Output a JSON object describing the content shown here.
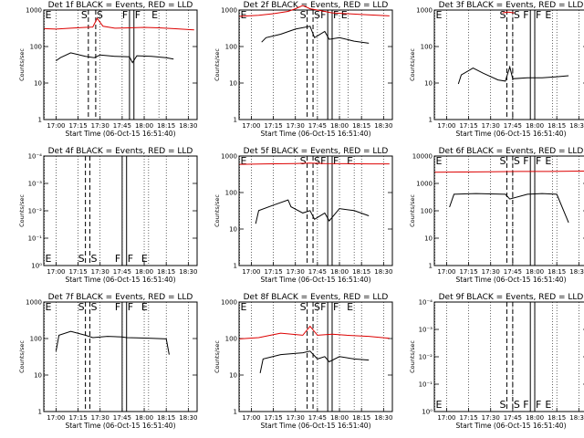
{
  "chart_data": [
    {
      "type": "line",
      "title": "Det 1f BLACK = Events, RED = LLD",
      "xlabel": "Start Time (06-Oct-15 16:51:40)",
      "ylabel": "Counts/sec",
      "yscale": "log",
      "ylim": [
        1,
        1200
      ],
      "xlim": [
        "16:51:40",
        "18:36:00"
      ],
      "x_ticks": [
        "17:00",
        "17:15",
        "17:30",
        "17:45",
        "18:00",
        "18:15",
        "18:30"
      ],
      "y_ticks": [
        "1",
        "10",
        "100",
        "1000"
      ],
      "markers": [
        {
          "label": "E",
          "time": "16:52",
          "style": "dotted"
        },
        {
          "label": "S",
          "time": "17:22",
          "style": "dashed"
        },
        {
          "label": "S",
          "time": "17:27",
          "style": "dashed"
        },
        {
          "label": "F",
          "time": "17:50",
          "style": "solid"
        },
        {
          "label": "F",
          "time": "17:53",
          "style": "solid"
        },
        {
          "label": "E",
          "time": "18:10",
          "style": "dotted"
        }
      ],
      "series": [
        {
          "color": "#dd0000",
          "x": [
            "16:52",
            "17:00",
            "17:10",
            "17:20",
            "17:25",
            "17:28",
            "17:32",
            "17:40",
            "17:50",
            "18:00",
            "18:10",
            "18:20",
            "18:34"
          ],
          "y": [
            360,
            350,
            370,
            390,
            400,
            700,
            420,
            370,
            380,
            390,
            380,
            360,
            330
          ]
        },
        {
          "color": "#000000",
          "x": [
            "17:00",
            "17:03",
            "17:10",
            "17:20",
            "17:26",
            "17:30",
            "17:40",
            "17:50",
            "17:52",
            "17:55",
            "18:05",
            "18:15",
            "18:20"
          ],
          "y": [
            45,
            55,
            75,
            60,
            55,
            65,
            60,
            58,
            40,
            62,
            60,
            55,
            50
          ]
        }
      ]
    },
    {
      "type": "line",
      "title": "Det 2f BLACK = Events, RED = LLD",
      "xlabel": "Start Time (06-Oct-15 16:51:40)",
      "ylabel": "Counts/sec",
      "yscale": "log",
      "ylim": [
        1,
        1200
      ],
      "xlim": [
        "16:51:40",
        "18:36:00"
      ],
      "x_ticks": [
        "17:00",
        "17:15",
        "17:30",
        "17:45",
        "18:00",
        "18:15",
        "18:30"
      ],
      "y_ticks": [
        "1",
        "10",
        "100",
        "1000"
      ],
      "markers": [
        {
          "label": "E",
          "time": "16:52",
          "style": "dotted"
        },
        {
          "label": "S",
          "time": "17:38",
          "style": "dashed"
        },
        {
          "label": "S",
          "time": "17:42",
          "style": "dashed"
        },
        {
          "label": "F",
          "time": "17:52",
          "style": "solid"
        },
        {
          "label": "F",
          "time": "17:55",
          "style": "solid"
        },
        {
          "label": "E",
          "time": "18:06",
          "style": "dotted"
        }
      ],
      "series": [
        {
          "color": "#dd0000",
          "x": [
            "16:52",
            "17:05",
            "17:15",
            "17:25",
            "17:30",
            "17:35",
            "17:40",
            "17:45",
            "17:55",
            "18:05",
            "18:15",
            "18:34"
          ],
          "y": [
            800,
            850,
            950,
            1100,
            1300,
            1600,
            1300,
            1200,
            1000,
            950,
            900,
            820
          ]
        },
        {
          "color": "#000000",
          "x": [
            "17:07",
            "17:10",
            "17:20",
            "17:30",
            "17:40",
            "17:43",
            "17:50",
            "17:53",
            "18:00",
            "18:10",
            "18:20"
          ],
          "y": [
            150,
            200,
            250,
            350,
            420,
            200,
            300,
            180,
            200,
            160,
            140
          ]
        }
      ]
    },
    {
      "type": "line",
      "title": "Det 3f BLACK = Events, RED = LLD",
      "xlabel": "Start Time (06-Oct-15 16:51:40)",
      "ylabel": "Counts/sec",
      "yscale": "log",
      "ylim": [
        1,
        1200
      ],
      "xlim": [
        "16:51:40",
        "18:36:00"
      ],
      "x_ticks": [
        "17:00",
        "17:15",
        "17:30",
        "17:45",
        "18:00",
        "18:15",
        "18:30"
      ],
      "y_ticks": [
        "1",
        "10",
        "100",
        "1000"
      ],
      "markers": [
        {
          "label": "E",
          "time": "16:52",
          "style": "dotted"
        },
        {
          "label": "S",
          "time": "17:41",
          "style": "dashed"
        },
        {
          "label": "S",
          "time": "17:45",
          "style": "dashed"
        },
        {
          "label": "F",
          "time": "17:57",
          "style": "solid"
        },
        {
          "label": "F",
          "time": "18:00",
          "style": "solid"
        },
        {
          "label": "E",
          "time": "18:12",
          "style": "dotted"
        }
      ],
      "series": [
        {
          "color": "#dd0000",
          "x": [
            "17:38",
            "17:42",
            "17:46"
          ],
          "y": [
            1000,
            1050,
            1000
          ]
        },
        {
          "color": "#000000",
          "x": [
            "17:08",
            "17:10",
            "17:18",
            "17:25",
            "17:35",
            "17:40",
            "17:43",
            "17:45",
            "17:55",
            "18:05",
            "18:15",
            "18:23"
          ],
          "y": [
            10,
            18,
            28,
            20,
            13,
            12,
            30,
            14,
            15,
            15,
            16,
            17
          ]
        }
      ]
    },
    {
      "type": "line",
      "title": "Det 4f BLACK = Events, RED = LLD",
      "xlabel": "Start Time (06-Oct-15 16:51:40)",
      "ylabel": "Counts/sec",
      "yscale": "log",
      "ylim": [
        1,
        10000
      ],
      "xlim": [
        "16:51:40",
        "18:36:00"
      ],
      "x_ticks": [
        "17:00",
        "17:15",
        "17:30",
        "17:45",
        "18:00",
        "18:15",
        "18:30"
      ],
      "y_ticks": [
        "10⁰",
        "10⁻¹",
        "10⁻²",
        "10⁻³",
        "10⁻⁴"
      ],
      "markers": [
        {
          "label": "E",
          "time": "16:52",
          "style": "dotted"
        },
        {
          "label": "S",
          "time": "17:20",
          "style": "dashed"
        },
        {
          "label": "S",
          "time": "17:23",
          "style": "dashed"
        },
        {
          "label": "F",
          "time": "17:45",
          "style": "solid"
        },
        {
          "label": "F",
          "time": "17:48",
          "style": "solid"
        },
        {
          "label": "E",
          "time": "18:03",
          "style": "dotted"
        }
      ],
      "series": []
    },
    {
      "type": "line",
      "title": "Det 5f BLACK = Events, RED = LLD",
      "xlabel": "Start Time (06-Oct-15 16:51:40)",
      "ylabel": "Counts/sec",
      "yscale": "log",
      "ylim": [
        1,
        1200
      ],
      "xlim": [
        "16:51:40",
        "18:36:00"
      ],
      "x_ticks": [
        "17:00",
        "17:15",
        "17:30",
        "17:45",
        "18:00",
        "18:15",
        "18:30"
      ],
      "y_ticks": [
        "1",
        "10",
        "100",
        "1000"
      ],
      "markers": [
        {
          "label": "E",
          "time": "16:52",
          "style": "dotted"
        },
        {
          "label": "S",
          "time": "17:38",
          "style": "dashed"
        },
        {
          "label": "S",
          "time": "17:42",
          "style": "dashed"
        },
        {
          "label": "F",
          "time": "17:52",
          "style": "solid"
        },
        {
          "label": "F",
          "time": "17:55",
          "style": "solid"
        },
        {
          "label": "E",
          "time": "18:10",
          "style": "dotted"
        }
      ],
      "series": [
        {
          "color": "#dd0000",
          "x": [
            "16:52",
            "17:10",
            "17:30",
            "17:40",
            "17:50",
            "18:05",
            "18:20",
            "18:34"
          ],
          "y": [
            700,
            720,
            740,
            760,
            740,
            730,
            720,
            720
          ]
        },
        {
          "color": "#000000",
          "x": [
            "17:03",
            "17:05",
            "17:15",
            "17:25",
            "17:27",
            "17:35",
            "17:40",
            "17:43",
            "17:50",
            "17:53",
            "18:00",
            "18:10",
            "18:20"
          ],
          "y": [
            15,
            35,
            50,
            70,
            45,
            30,
            35,
            20,
            30,
            18,
            40,
            35,
            25
          ]
        }
      ]
    },
    {
      "type": "line",
      "title": "Det 6f BLACK = Events, RED = LLD",
      "xlabel": "Start Time (06-Oct-15 16:51:40)",
      "ylabel": "Counts/sec",
      "yscale": "log",
      "ylim": [
        1,
        12000
      ],
      "xlim": [
        "16:51:40",
        "18:36:00"
      ],
      "x_ticks": [
        "17:00",
        "17:15",
        "17:30",
        "17:45",
        "18:00",
        "18:15",
        "18:30"
      ],
      "y_ticks": [
        "1",
        "10",
        "100",
        "1000",
        "10000"
      ],
      "markers": [
        {
          "label": "E",
          "time": "16:52",
          "style": "dotted"
        },
        {
          "label": "S",
          "time": "17:41",
          "style": "dashed"
        },
        {
          "label": "S",
          "time": "17:45",
          "style": "dashed"
        },
        {
          "label": "F",
          "time": "17:57",
          "style": "solid"
        },
        {
          "label": "F",
          "time": "18:00",
          "style": "solid"
        },
        {
          "label": "E",
          "time": "18:12",
          "style": "dotted"
        }
      ],
      "series": [
        {
          "color": "#dd0000",
          "x": [
            "16:52",
            "17:10",
            "17:30",
            "17:50",
            "18:10",
            "18:34"
          ],
          "y": [
            3000,
            3050,
            3100,
            3200,
            3200,
            3300
          ]
        },
        {
          "color": "#000000",
          "x": [
            "17:02",
            "17:05",
            "17:20",
            "17:40",
            "17:43",
            "17:55",
            "18:05",
            "18:15",
            "18:23"
          ],
          "y": [
            150,
            450,
            480,
            450,
            300,
            450,
            480,
            450,
            40
          ]
        }
      ]
    },
    {
      "type": "line",
      "title": "Det 7f BLACK = Events, RED = LLD",
      "xlabel": "Start Time (06-Oct-15 16:51:40)",
      "ylabel": "Counts/sec",
      "yscale": "log",
      "ylim": [
        1,
        1200
      ],
      "xlim": [
        "16:51:40",
        "18:36:00"
      ],
      "x_ticks": [
        "17:00",
        "17:15",
        "17:30",
        "17:45",
        "18:00",
        "18:15",
        "18:30"
      ],
      "y_ticks": [
        "1",
        "10",
        "100",
        "1000"
      ],
      "markers": [
        {
          "label": "E",
          "time": "16:52",
          "style": "dotted"
        },
        {
          "label": "S",
          "time": "17:20",
          "style": "dashed"
        },
        {
          "label": "S",
          "time": "17:23",
          "style": "dashed"
        },
        {
          "label": "F",
          "time": "17:45",
          "style": "solid"
        },
        {
          "label": "F",
          "time": "17:48",
          "style": "solid"
        },
        {
          "label": "E",
          "time": "18:03",
          "style": "dotted"
        }
      ],
      "series": [
        {
          "color": "#000000",
          "x": [
            "17:00",
            "17:02",
            "17:10",
            "17:20",
            "17:25",
            "17:35",
            "17:45",
            "17:48",
            "17:55",
            "18:05",
            "18:15",
            "18:17"
          ],
          "y": [
            50,
            140,
            180,
            140,
            120,
            130,
            125,
            120,
            118,
            115,
            110,
            40
          ]
        }
      ]
    },
    {
      "type": "line",
      "title": "Det 8f BLACK = Events, RED = LLD",
      "xlabel": "Start Time (06-Oct-15 16:51:40)",
      "ylabel": "Counts/sec",
      "yscale": "log",
      "ylim": [
        1,
        1200
      ],
      "xlim": [
        "16:51:40",
        "18:36:00"
      ],
      "x_ticks": [
        "17:00",
        "17:15",
        "17:30",
        "17:45",
        "18:00",
        "18:15",
        "18:30"
      ],
      "y_ticks": [
        "1",
        "10",
        "100",
        "1000"
      ],
      "markers": [
        {
          "label": "E",
          "time": "16:52",
          "style": "dotted"
        },
        {
          "label": "S",
          "time": "17:38",
          "style": "dashed"
        },
        {
          "label": "S",
          "time": "17:42",
          "style": "dashed"
        },
        {
          "label": "F",
          "time": "17:52",
          "style": "solid"
        },
        {
          "label": "F",
          "time": "17:55",
          "style": "solid"
        },
        {
          "label": "E",
          "time": "18:10",
          "style": "dotted"
        }
      ],
      "series": [
        {
          "color": "#dd0000",
          "x": [
            "16:52",
            "17:05",
            "17:20",
            "17:35",
            "17:40",
            "17:45",
            "17:55",
            "18:05",
            "18:20",
            "18:34"
          ],
          "y": [
            110,
            120,
            160,
            140,
            250,
            140,
            150,
            140,
            130,
            115
          ]
        },
        {
          "color": "#000000",
          "x": [
            "17:06",
            "17:08",
            "17:20",
            "17:35",
            "17:40",
            "17:45",
            "17:50",
            "17:53",
            "18:00",
            "18:10",
            "18:20"
          ],
          "y": [
            12,
            30,
            40,
            45,
            50,
            30,
            35,
            25,
            35,
            30,
            28
          ]
        }
      ]
    },
    {
      "type": "line",
      "title": "Det 9f BLACK = Events, RED = LLD",
      "xlabel": "Start Time (06-Oct-15 16:51:40)",
      "ylabel": "Counts/sec",
      "yscale": "log",
      "ylim": [
        1,
        10000
      ],
      "xlim": [
        "16:51:40",
        "18:36:00"
      ],
      "x_ticks": [
        "17:00",
        "17:15",
        "17:30",
        "17:45",
        "18:00",
        "18:15",
        "18:30"
      ],
      "y_ticks": [
        "10⁰",
        "10⁻¹",
        "10⁻²",
        "10⁻³",
        "10⁻⁴"
      ],
      "markers": [
        {
          "label": "E",
          "time": "16:52",
          "style": "dotted"
        },
        {
          "label": "S",
          "time": "17:41",
          "style": "dashed"
        },
        {
          "label": "S",
          "time": "17:45",
          "style": "dashed"
        },
        {
          "label": "F",
          "time": "17:57",
          "style": "solid"
        },
        {
          "label": "F",
          "time": "18:00",
          "style": "solid"
        },
        {
          "label": "E",
          "time": "18:12",
          "style": "dotted"
        }
      ],
      "series": []
    }
  ]
}
